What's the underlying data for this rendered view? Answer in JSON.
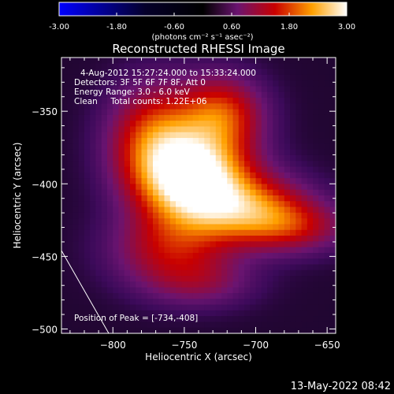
{
  "chart_data": {
    "type": "heatmap",
    "title": "Reconstructed RHESSI Image",
    "xlabel": "Heliocentric X (arcsec)",
    "ylabel": "Heliocentric Y (arcsec)",
    "xlim": [
      -836,
      -644
    ],
    "ylim": [
      -503,
      -313
    ],
    "x_ticks": [
      -800,
      -750,
      -700,
      -650
    ],
    "y_ticks": [
      -350,
      -400,
      -450,
      -500
    ],
    "colorbar": {
      "range": [
        -3.0,
        3.0
      ],
      "ticks": [
        "-3.00",
        "-1.80",
        "-0.60",
        "0.60",
        "1.80",
        "3.00"
      ],
      "units_label": "(photons cm⁻² s⁻¹ asec⁻²)",
      "colormap": [
        "#0000ff",
        "#000000",
        "#6a1470",
        "#c80000",
        "#ffa000",
        "#ffffff"
      ]
    },
    "annotations": [
      "4-Aug-2012 15:27:24.000 to 15:33:24.000",
      "Detectors: 3F 5F 6F 7F 8F, Att 0",
      "Energy Range: 3.0 - 6.0 keV",
      "Clean     Total counts: 1.22E+06"
    ],
    "peak_label": "Position of Peak = [-734,-408]",
    "peak": {
      "x": -734,
      "y": -408,
      "value": 3.0
    },
    "background_value": 0.2,
    "sources": [
      {
        "x": -742,
        "y": -397,
        "amp": 2.9,
        "sx": 26,
        "sy": 22
      },
      {
        "x": -770,
        "y": -370,
        "amp": 1.6,
        "sx": 22,
        "sy": 26
      },
      {
        "x": -724,
        "y": -352,
        "amp": 1.5,
        "sx": 20,
        "sy": 18
      },
      {
        "x": -702,
        "y": -418,
        "amp": 1.6,
        "sx": 28,
        "sy": 16
      },
      {
        "x": -672,
        "y": -430,
        "amp": 0.9,
        "sx": 26,
        "sy": 12
      },
      {
        "x": -760,
        "y": -445,
        "amp": 1.1,
        "sx": 28,
        "sy": 18
      },
      {
        "x": -738,
        "y": -468,
        "amp": 0.6,
        "sx": 26,
        "sy": 12
      }
    ],
    "grid": false
  },
  "timestamp": "13-May-2022 08:42"
}
